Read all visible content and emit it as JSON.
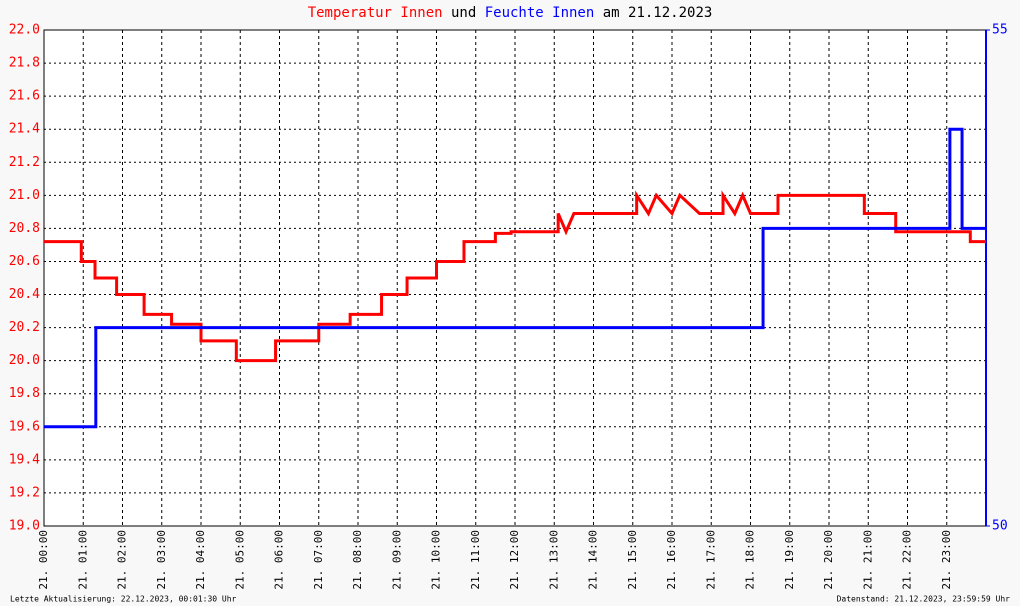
{
  "chart_data": {
    "type": "line",
    "title_parts": [
      "und",
      "am 21.12.2023"
    ],
    "footer_left": "Letzte Aktualisierung: 22.12.2023, 00:01:30 Uhr",
    "footer_right": "Datenstand: 21.12.2023, 23:59:59 Uhr",
    "xlim": [
      0,
      24
    ],
    "xticks": [
      {
        "value": 0,
        "label": "21. 00:00"
      },
      {
        "value": 1,
        "label": "21. 01:00"
      },
      {
        "value": 2,
        "label": "21. 02:00"
      },
      {
        "value": 3,
        "label": "21. 03:00"
      },
      {
        "value": 4,
        "label": "21. 04:00"
      },
      {
        "value": 5,
        "label": "21. 05:00"
      },
      {
        "value": 6,
        "label": "21. 06:00"
      },
      {
        "value": 7,
        "label": "21. 07:00"
      },
      {
        "value": 8,
        "label": "21. 08:00"
      },
      {
        "value": 9,
        "label": "21. 09:00"
      },
      {
        "value": 10,
        "label": "21. 10:00"
      },
      {
        "value": 11,
        "label": "21. 11:00"
      },
      {
        "value": 12,
        "label": "21. 12:00"
      },
      {
        "value": 13,
        "label": "21. 13:00"
      },
      {
        "value": 14,
        "label": "21. 14:00"
      },
      {
        "value": 15,
        "label": "21. 15:00"
      },
      {
        "value": 16,
        "label": "21. 16:00"
      },
      {
        "value": 17,
        "label": "21. 17:00"
      },
      {
        "value": 18,
        "label": "21. 18:00"
      },
      {
        "value": 19,
        "label": "21. 19:00"
      },
      {
        "value": 20,
        "label": "21. 20:00"
      },
      {
        "value": 21,
        "label": "21. 21:00"
      },
      {
        "value": 22,
        "label": "21. 22:00"
      },
      {
        "value": 23,
        "label": "21. 23:00"
      }
    ],
    "ylim": [
      19.0,
      22.0
    ],
    "yticks": [
      {
        "value": 19.0,
        "label": "19.0"
      },
      19.2,
      19.4,
      19.6,
      19.8,
      {
        "value": 20.0,
        "label": "20.0"
      },
      20.2,
      20.4,
      20.6,
      20.8,
      {
        "value": 21.0,
        "label": "21.0"
      },
      21.2,
      21.4,
      21.6,
      21.8,
      {
        "value": 22.0,
        "label": "22.0"
      }
    ],
    "y2lim": [
      50,
      55
    ],
    "y2ticks": [
      50,
      55
    ],
    "grid": true,
    "series": [
      {
        "name": "Temperatur Innen",
        "color": "#ff0000",
        "x": [
          0,
          0.95,
          0.95,
          1.3,
          1.3,
          1.85,
          1.85,
          2.55,
          2.55,
          3.25,
          3.25,
          4.0,
          4.0,
          4.9,
          4.9,
          5.9,
          5.9,
          7.0,
          7.0,
          7.8,
          7.8,
          8.6,
          8.6,
          9.25,
          9.25,
          10.0,
          10.0,
          10.7,
          10.7,
          11.5,
          11.5,
          11.9,
          11.9,
          13.1,
          13.1,
          13.3,
          13.5,
          15.1,
          15.1,
          15.4,
          15.6,
          16.0,
          16.2,
          16.7,
          17.3,
          17.3,
          17.6,
          17.8,
          18.0,
          18.7,
          18.7,
          20.9,
          20.9,
          21.7,
          21.7,
          23.6,
          23.6,
          24
        ],
        "values": [
          20.72,
          20.72,
          20.6,
          20.6,
          20.5,
          20.5,
          20.4,
          20.4,
          20.28,
          20.28,
          20.22,
          20.22,
          20.12,
          20.12,
          20.0,
          20.0,
          20.12,
          20.12,
          20.22,
          20.22,
          20.28,
          20.28,
          20.4,
          20.4,
          20.5,
          20.5,
          20.6,
          20.6,
          20.72,
          20.72,
          20.77,
          20.77,
          20.78,
          20.78,
          20.89,
          20.78,
          20.89,
          20.89,
          21.0,
          20.89,
          21.0,
          20.89,
          21.0,
          20.89,
          20.89,
          21.0,
          20.89,
          21.0,
          20.89,
          20.89,
          21.0,
          21.0,
          20.89,
          20.89,
          20.78,
          20.78,
          20.72,
          20.72
        ]
      },
      {
        "name": "Feuchte Innen",
        "color": "#0000ff",
        "axis": "y2",
        "x": [
          0,
          1.32,
          1.32,
          18.32,
          18.32,
          23.08,
          23.08,
          23.39,
          23.39,
          24
        ],
        "values": [
          51,
          51,
          52,
          52,
          53,
          53,
          54,
          54,
          53,
          53
        ]
      }
    ]
  }
}
